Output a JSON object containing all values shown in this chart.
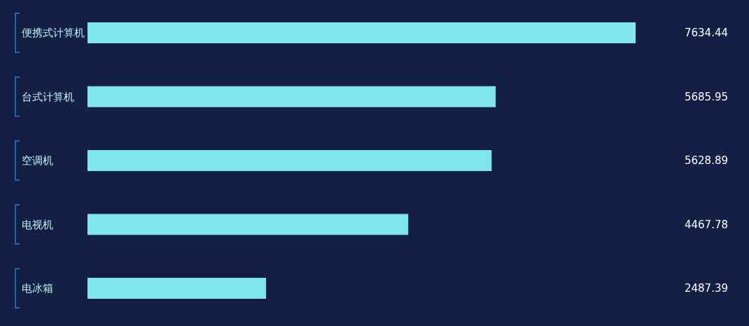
{
  "chart_data": {
    "type": "bar",
    "orientation": "horizontal",
    "categories": [
      "便携式计算机",
      "台式计算机",
      "空调机",
      "电视机",
      "电冰箱"
    ],
    "values": [
      7634.44,
      5685.95,
      5628.89,
      4467.78,
      2487.39
    ],
    "color": "#80e6ee",
    "data_labels": true
  }
}
